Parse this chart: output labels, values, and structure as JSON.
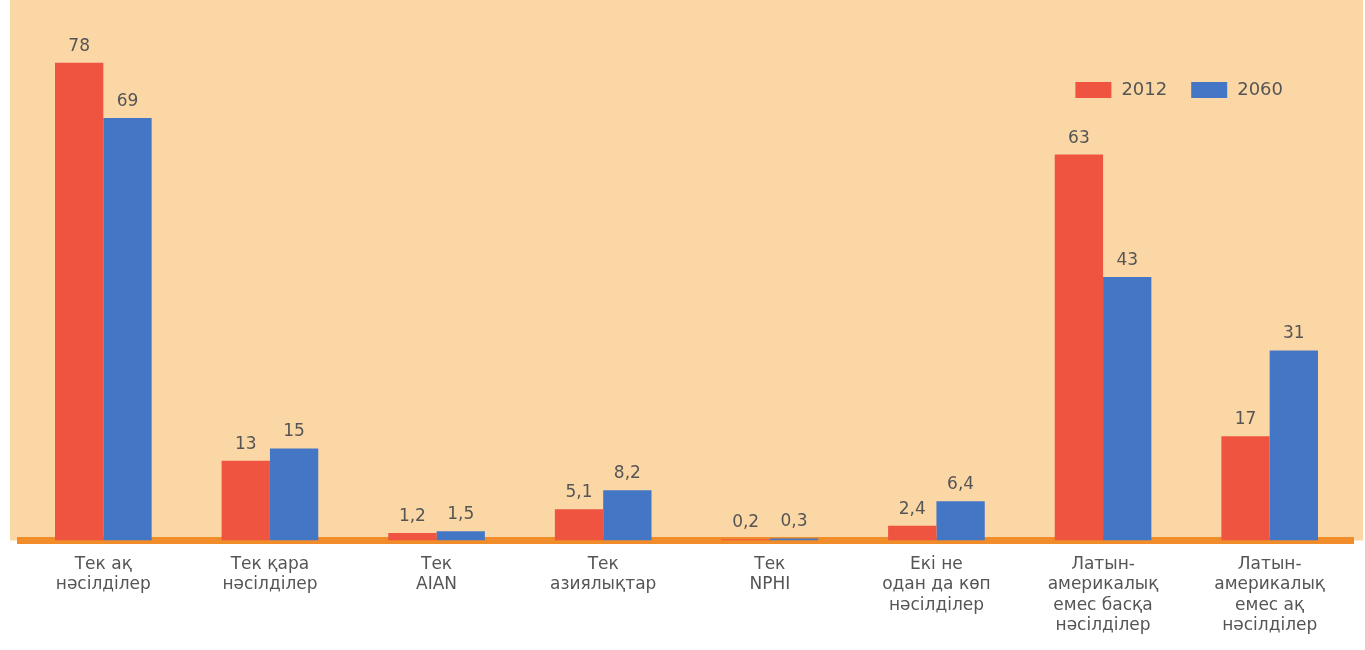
{
  "chart_data": {
    "type": "bar",
    "categories": [
      "Тек ақ\nнәсілділер",
      "Тек қара\nнәсілділер",
      "Тек\nAIAN",
      "Тек\nазиялықтар",
      "Тек\nNPHI",
      "Екі не\nодан да көп\nнәсілділер",
      "Латын-\nамерикалық\nемес басқа\nнәсілділер",
      "Латын-\nамерикалық\nемес ақ\nнәсілділер"
    ],
    "series": [
      {
        "name": "2012",
        "color": "#ef5440",
        "values": [
          78,
          13,
          1.2,
          5.1,
          0.2,
          2.4,
          63,
          17
        ],
        "value_labels": [
          "78",
          "13",
          "1,2",
          "5,1",
          "0,2",
          "2,4",
          "63",
          "17"
        ]
      },
      {
        "name": "2060",
        "color": "#4377c6",
        "values": [
          69,
          15,
          1.5,
          8.2,
          0.3,
          6.4,
          43,
          31
        ],
        "value_labels": [
          "69",
          "15",
          "1,5",
          "8,2",
          "0,3",
          "6,4",
          "43",
          "31"
        ]
      }
    ],
    "legend": "top right",
    "grid": false
  }
}
